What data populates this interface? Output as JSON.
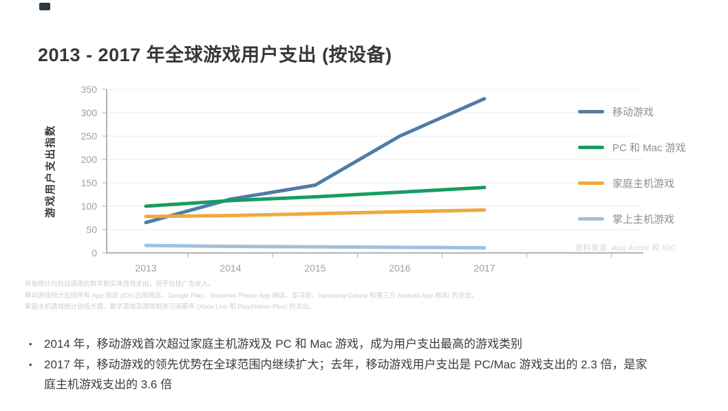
{
  "page": {
    "title": "2013 - 2017 年全球游戏用户支出 (按设备)"
  },
  "chart_data": {
    "type": "line",
    "title": "2013 - 2017 年全球游戏用户支出 (按设备)",
    "xlabel": "",
    "ylabel": "游戏用户支出指数",
    "categories": [
      "2013",
      "2014",
      "2015",
      "2016",
      "2017"
    ],
    "series": [
      {
        "name": "移动游戏",
        "color": "#4d7da6",
        "values": [
          65,
          115,
          145,
          250,
          330
        ]
      },
      {
        "name": "PC 和 Mac 游戏",
        "color": "#179c62",
        "values": [
          100,
          112,
          120,
          130,
          140
        ]
      },
      {
        "name": "家庭主机游戏",
        "color": "#f0a93c",
        "values": [
          78,
          80,
          84,
          88,
          92
        ]
      },
      {
        "name": "掌上主机游戏",
        "color": "#a1c0da",
        "values": [
          16,
          14,
          13,
          12,
          11
        ]
      }
    ],
    "ylim": [
      0,
      350
    ],
    "ytick_step": 50,
    "grid": true,
    "legend_position": "right"
  },
  "source_note": "资料来源: App Annie 和 IDC",
  "footnotes": [
    "所有统计均包括适用的数字和实体游戏支出，但不包括广告收入。",
    "移动游戏统计包括所有 App 商店 (iOS 应用商店、Google Play、Windows Phone App 商店、亚马逊、Samsung Galaxy 和第三方 Android App 商店) 的支出。",
    "家庭主机游戏统计包括光盘、数字游戏及游戏相关订阅服务 (Xbox Live 和 PlayStation Plus) 的支出。"
  ],
  "bullets": [
    "2014 年，移动游戏首次超过家庭主机游戏及 PC 和 Mac 游戏，成为用户支出最高的游戏类别",
    "2017 年，移动游戏的领先优势在全球范围内继续扩大；去年，移动游戏用户支出是 PC/Mac 游戏支出的 2.3 倍，是家庭主机游戏支出的 3.6 倍"
  ]
}
